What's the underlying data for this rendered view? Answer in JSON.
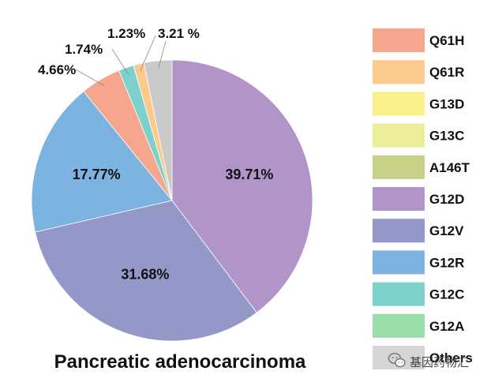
{
  "chart_data": {
    "type": "pie",
    "title": "Pancreatic adenocarcinoma",
    "slices": [
      {
        "name": "G12D",
        "value": 39.71,
        "label": "39.71%",
        "color": "#B195C9"
      },
      {
        "name": "G12V",
        "value": 31.68,
        "label": "31.68%",
        "color": "#9398C9"
      },
      {
        "name": "G12R",
        "value": 17.77,
        "label": "17.77%",
        "color": "#7DB3E0"
      },
      {
        "name": "Q61H",
        "value": 4.66,
        "label": "4.66%",
        "color": "#F5A68C"
      },
      {
        "name": "G12C",
        "value": 1.74,
        "label": "1.74%",
        "color": "#7DD1CB"
      },
      {
        "name": "Q61R",
        "value": 1.23,
        "label": "1.23%",
        "color": "#FBCB8E"
      },
      {
        "name": "Others",
        "value": 3.21,
        "label": "3.21 %",
        "color": "#C9C9C9"
      }
    ],
    "legend": [
      {
        "name": "Q61H",
        "color": "#F5A68C"
      },
      {
        "name": "Q61R",
        "color": "#FBCB8E"
      },
      {
        "name": "G13D",
        "color": "#FAF08A"
      },
      {
        "name": "G13C",
        "color": "#EDEE99"
      },
      {
        "name": "A146T",
        "color": "#C8CF86"
      },
      {
        "name": "G12D",
        "color": "#B195C9"
      },
      {
        "name": "G12V",
        "color": "#9398C9"
      },
      {
        "name": "G12R",
        "color": "#7DB3E0"
      },
      {
        "name": "G12C",
        "color": "#7DD1CB"
      },
      {
        "name": "G12A",
        "color": "#99DDAA"
      },
      {
        "name": "Others",
        "color": "#D6D6D6"
      }
    ],
    "legend_position": "right"
  },
  "watermark": {
    "text": "基因药物汇",
    "icon": "wechat-icon"
  }
}
